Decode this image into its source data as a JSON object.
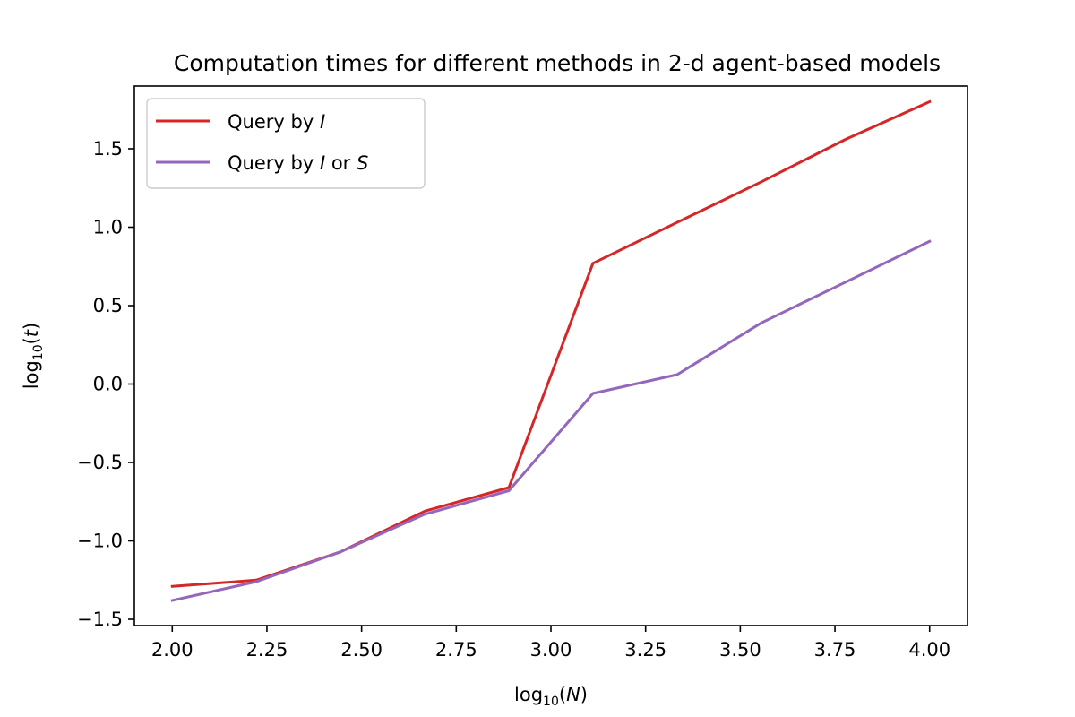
{
  "chart_data": {
    "type": "line",
    "title": "Computation times for different methods in 2-d agent-based models",
    "xlabel": {
      "base": "log",
      "sub": "10",
      "var": "N"
    },
    "ylabel": {
      "base": "log",
      "sub": "10",
      "var": "t"
    },
    "xlim": [
      1.9,
      4.1
    ],
    "ylim": [
      -1.54,
      1.9
    ],
    "xticks": [
      2.0,
      2.25,
      2.5,
      2.75,
      3.0,
      3.25,
      3.5,
      3.75,
      4.0
    ],
    "xtick_labels": [
      "2.00",
      "2.25",
      "2.50",
      "2.75",
      "3.00",
      "3.25",
      "3.50",
      "3.75",
      "4.00"
    ],
    "yticks": [
      -1.5,
      -1.0,
      -0.5,
      0.0,
      0.5,
      1.0,
      1.5
    ],
    "ytick_labels": [
      "−1.5",
      "−1.0",
      "−0.5",
      "0.0",
      "0.5",
      "1.0",
      "1.5"
    ],
    "grid": false,
    "legend_position": "top-left",
    "series": [
      {
        "name": "Query by I",
        "legend": {
          "pre": "Query by ",
          "i1": "I",
          "mid": "",
          "i2": ""
        },
        "color": "#d62728",
        "x": [
          2.0,
          2.222,
          2.444,
          2.667,
          2.889,
          3.111,
          3.333,
          3.556,
          3.778,
          4.0
        ],
        "y": [
          -1.29,
          -1.25,
          -1.07,
          -0.81,
          -0.66,
          0.77,
          1.03,
          1.29,
          1.56,
          1.8
        ]
      },
      {
        "name": "Query by I or S",
        "legend": {
          "pre": "Query by ",
          "i1": "I",
          "mid": " or ",
          "i2": "S"
        },
        "color": "#9467bd",
        "x": [
          2.0,
          2.222,
          2.444,
          2.667,
          2.889,
          3.111,
          3.333,
          3.556,
          3.778,
          4.0
        ],
        "y": [
          -1.38,
          -1.26,
          -1.07,
          -0.83,
          -0.68,
          -0.06,
          0.06,
          0.39,
          0.65,
          0.91
        ]
      }
    ]
  }
}
